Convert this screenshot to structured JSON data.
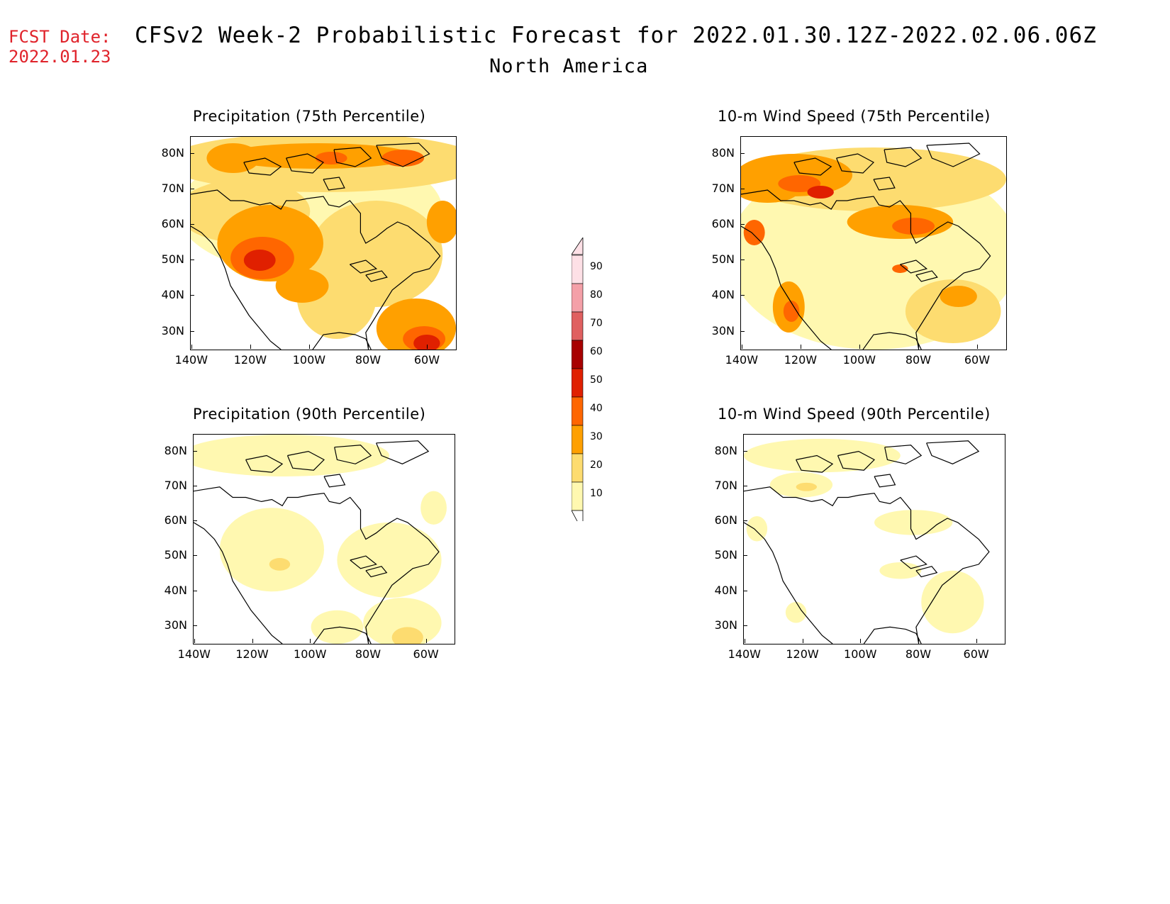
{
  "header": {
    "fcst_label": "FCST Date:",
    "fcst_date": "2022.01.23",
    "title": "CFSv2 Week-2 Probabilistic Forecast for 2022.01.30.12Z-2022.02.06.06Z",
    "subtitle": "North America"
  },
  "panels": [
    {
      "title": "Precipitation (75th Percentile)"
    },
    {
      "title": "10-m Wind Speed (75th Percentile)"
    },
    {
      "title": "Precipitation (90th Percentile)"
    },
    {
      "title": "10-m Wind Speed (90th Percentile)"
    }
  ],
  "axes": {
    "lat_labels": [
      "80N",
      "70N",
      "60N",
      "50N",
      "40N",
      "30N"
    ],
    "lon_labels": [
      "140W",
      "120W",
      "100W",
      "80W",
      "60W"
    ]
  },
  "colorbar": {
    "levels": [
      "90",
      "80",
      "70",
      "60",
      "50",
      "40",
      "30",
      "20",
      "10"
    ],
    "colors": [
      "#fde0e6",
      "#f4a0a8",
      "#e06060",
      "#a80000",
      "#e02000",
      "#ff6600",
      "#ffa000",
      "#fddc70",
      "#fff8b0"
    ]
  }
}
